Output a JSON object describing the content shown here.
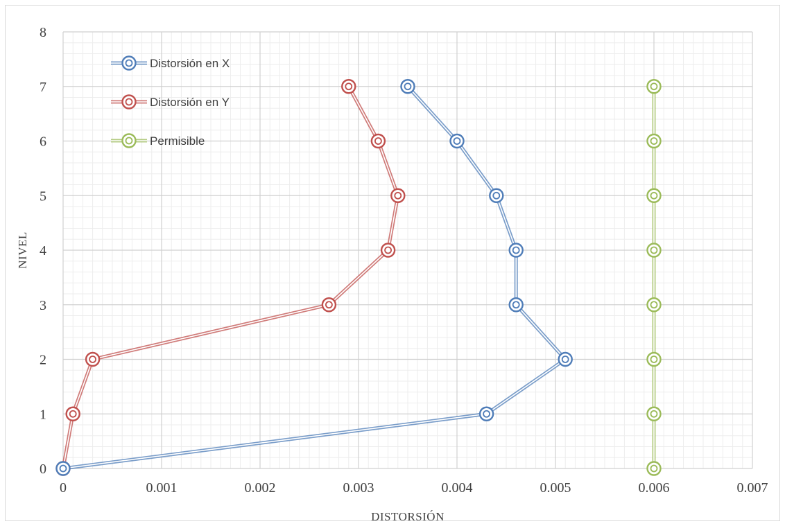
{
  "chart_data": {
    "type": "scatter",
    "title": "",
    "xlabel": "DISTORSIÓN",
    "ylabel": "NIVEL",
    "xlim": [
      0,
      0.007
    ],
    "ylim": [
      0,
      8
    ],
    "x_ticks": [
      "0",
      "0.001",
      "0.002",
      "0.003",
      "0.004",
      "0.005",
      "0.006",
      "0.007"
    ],
    "y_ticks": [
      "0",
      "1",
      "2",
      "3",
      "4",
      "5",
      "6",
      "7",
      "8"
    ],
    "grid": true,
    "minor_grid": true,
    "legend_position": "top-left",
    "series": [
      {
        "name": "Distorsión en X",
        "color": "#4f7db8",
        "points": [
          [
            0,
            0
          ],
          [
            0.0043,
            1
          ],
          [
            0.0051,
            2
          ],
          [
            0.0046,
            3
          ],
          [
            0.0046,
            4
          ],
          [
            0.0044,
            5
          ],
          [
            0.004,
            6
          ],
          [
            0.0035,
            7
          ]
        ]
      },
      {
        "name": "Distorsión en Y",
        "color": "#c0504d",
        "points": [
          [
            0,
            0
          ],
          [
            0.0001,
            1
          ],
          [
            0.0003,
            2
          ],
          [
            0.0027,
            3
          ],
          [
            0.0033,
            4
          ],
          [
            0.0034,
            5
          ],
          [
            0.0032,
            6
          ],
          [
            0.0029,
            7
          ]
        ]
      },
      {
        "name": "Permisible",
        "color": "#9bbb59",
        "points": [
          [
            0.006,
            0
          ],
          [
            0.006,
            1
          ],
          [
            0.006,
            2
          ],
          [
            0.006,
            3
          ],
          [
            0.006,
            4
          ],
          [
            0.006,
            5
          ],
          [
            0.006,
            6
          ],
          [
            0.006,
            7
          ]
        ]
      }
    ]
  }
}
